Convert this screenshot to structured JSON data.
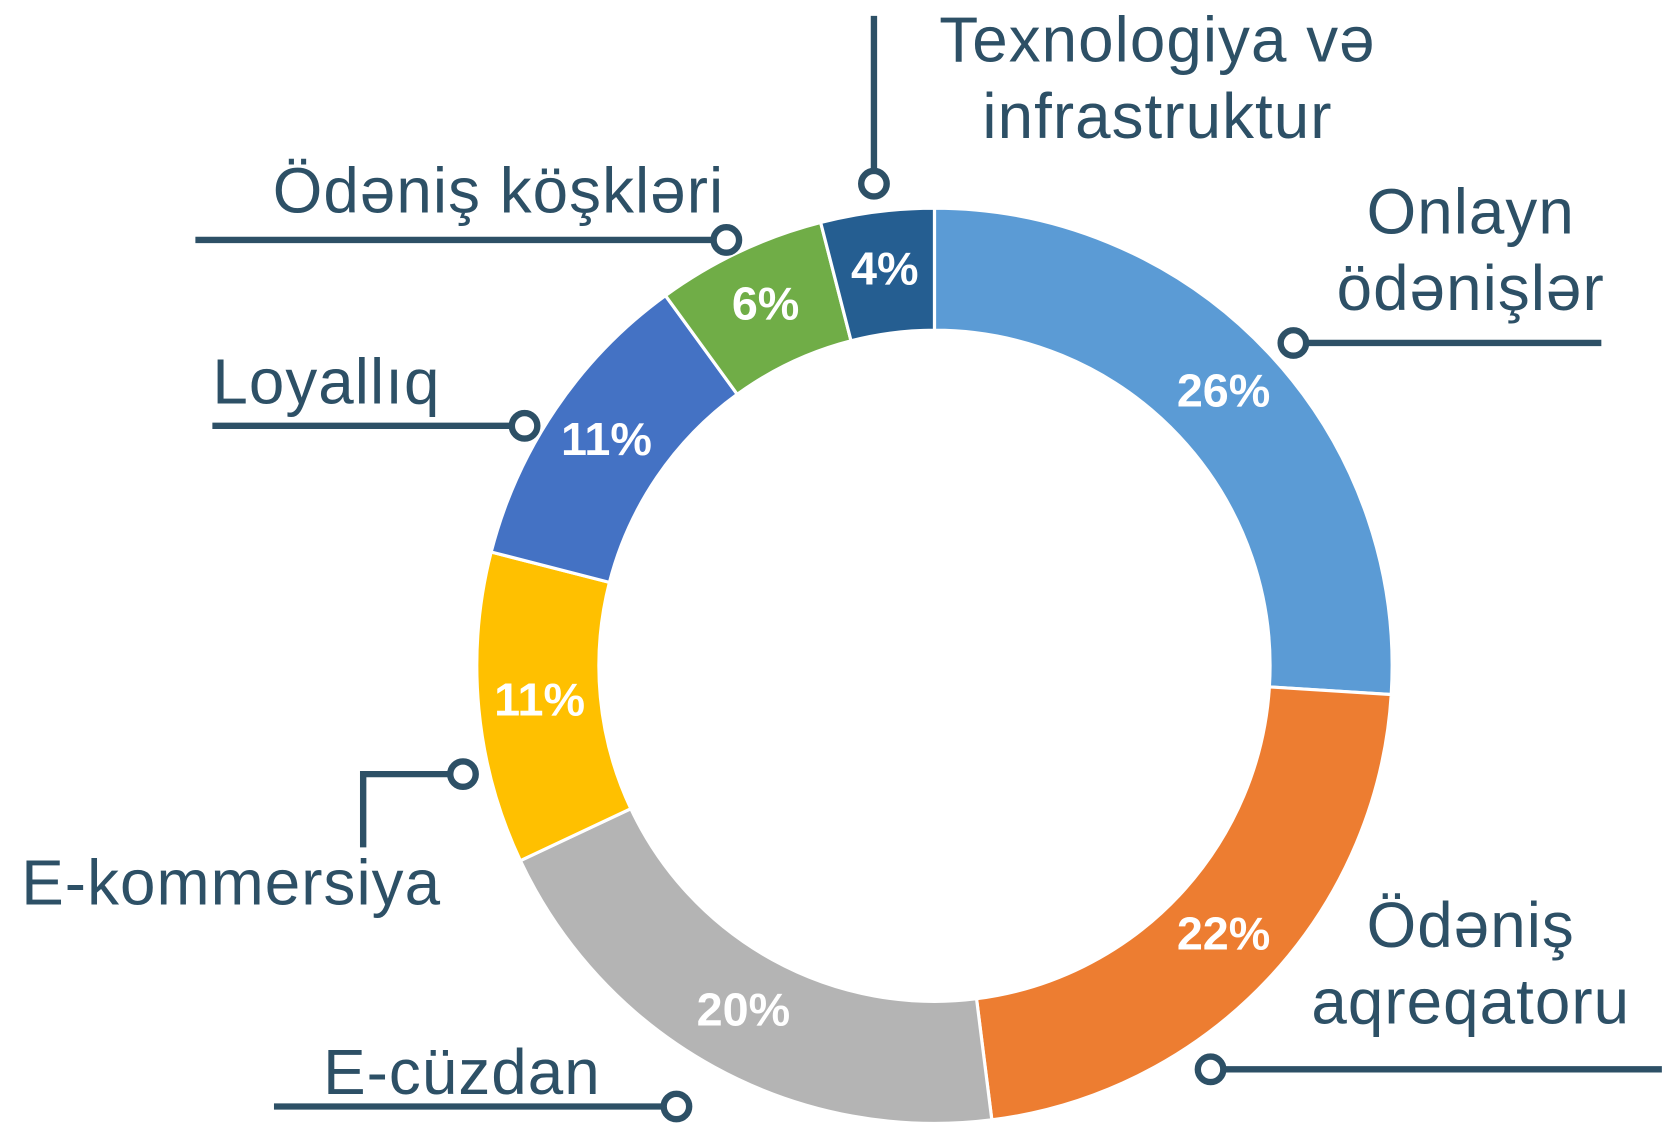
{
  "chart_data": {
    "type": "donut",
    "categories": [
      "Onlayn ödənişlər",
      "Ödəniş aqreqatoru",
      "E-cüzdan",
      "E-kommersiya",
      "Loyallıq",
      "Ödəniş köşkləri",
      "Texnologiya və infrastruktur"
    ],
    "values": [
      26,
      22,
      20,
      11,
      11,
      6,
      4
    ],
    "value_labels": [
      "26%",
      "22%",
      "20%",
      "11%",
      "11%",
      "6%",
      "4%"
    ],
    "colors": [
      "#5b9bd5",
      "#ed7d31",
      "#b4b4b4",
      "#ffc000",
      "#4472c4",
      "#70ad47",
      "#255e91"
    ]
  }
}
